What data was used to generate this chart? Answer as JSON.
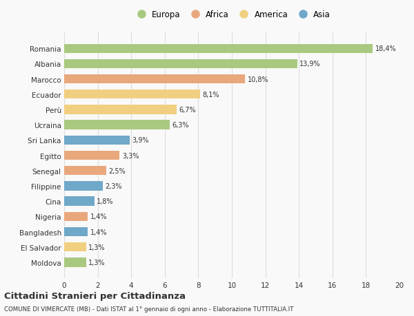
{
  "countries": [
    "Romania",
    "Albania",
    "Marocco",
    "Ecuador",
    "Perù",
    "Ucraina",
    "Sri Lanka",
    "Egitto",
    "Senegal",
    "Filippine",
    "Cina",
    "Nigeria",
    "Bangladesh",
    "El Salvador",
    "Moldova"
  ],
  "values": [
    18.4,
    13.9,
    10.8,
    8.1,
    6.7,
    6.3,
    3.9,
    3.3,
    2.5,
    2.3,
    1.8,
    1.4,
    1.4,
    1.3,
    1.3
  ],
  "labels": [
    "18,4%",
    "13,9%",
    "10,8%",
    "8,1%",
    "6,7%",
    "6,3%",
    "3,9%",
    "3,3%",
    "2,5%",
    "2,3%",
    "1,8%",
    "1,4%",
    "1,4%",
    "1,3%",
    "1,3%"
  ],
  "continents": [
    "Europa",
    "Europa",
    "Africa",
    "America",
    "America",
    "Europa",
    "Asia",
    "Africa",
    "Africa",
    "Asia",
    "Asia",
    "Africa",
    "Asia",
    "America",
    "Europa"
  ],
  "colors": {
    "Europa": "#a8c97f",
    "Africa": "#e8a87c",
    "America": "#f0d080",
    "Asia": "#6fa8c8"
  },
  "xlim": [
    0,
    20
  ],
  "xticks": [
    0,
    2,
    4,
    6,
    8,
    10,
    12,
    14,
    16,
    18,
    20
  ],
  "title": "Cittadini Stranieri per Cittadinanza",
  "subtitle": "COMUNE DI VIMERCATE (MB) - Dati ISTAT al 1° gennaio di ogni anno - Elaborazione TUTTITALIA.IT",
  "background_color": "#f9f9f9",
  "bar_height": 0.6,
  "grid_color": "#dddddd",
  "text_color": "#333333",
  "legend_order": [
    "Europa",
    "Africa",
    "America",
    "Asia"
  ]
}
